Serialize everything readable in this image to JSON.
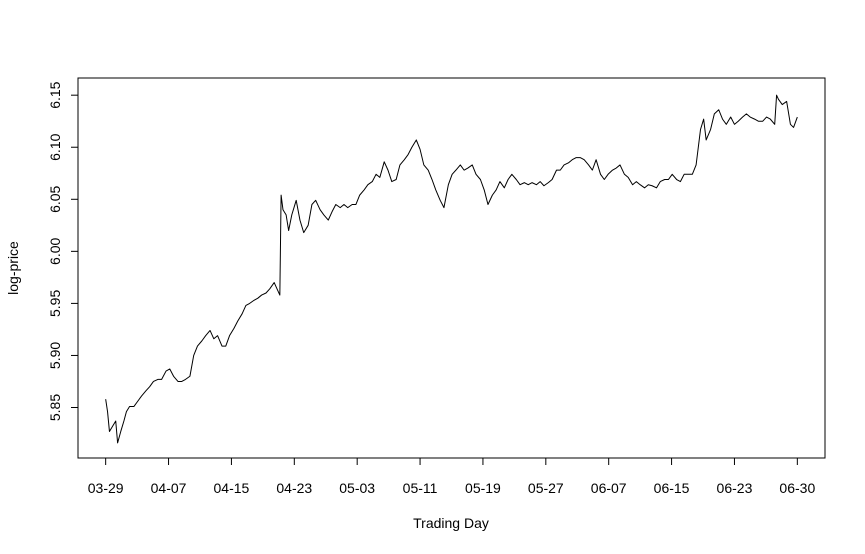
{
  "chart_data": {
    "type": "line",
    "x_label": "Trading Day",
    "y_label": "log-price",
    "color": "#000000",
    "xlim": [
      -0.44,
      11.44
    ],
    "ylim": [
      5.8015,
      6.1665
    ],
    "xticks": [
      {
        "value": 0,
        "label": "03-29"
      },
      {
        "value": 1,
        "label": "04-07"
      },
      {
        "value": 2,
        "label": "04-15"
      },
      {
        "value": 3,
        "label": "04-23"
      },
      {
        "value": 4,
        "label": "05-03"
      },
      {
        "value": 5,
        "label": "05-11"
      },
      {
        "value": 6,
        "label": "05-19"
      },
      {
        "value": 7,
        "label": "05-27"
      },
      {
        "value": 8,
        "label": "06-07"
      },
      {
        "value": 9,
        "label": "06-15"
      },
      {
        "value": 10,
        "label": "06-23"
      },
      {
        "value": 11,
        "label": "06-30"
      }
    ],
    "yticks": [
      5.85,
      {
        "value": 5.9,
        "label": "5.90"
      },
      5.95,
      {
        "value": 6.0,
        "label": "6.00"
      },
      6.05,
      {
        "value": 6.1,
        "label": "6.10"
      },
      6.15
    ],
    "x": [
      0,
      0.03,
      0.06,
      0.11,
      0.16,
      0.19,
      0.24,
      0.29,
      0.33,
      0.38,
      0.45,
      0.51,
      0.57,
      0.64,
      0.7,
      0.76,
      0.83,
      0.89,
      0.96,
      1.02,
      1.08,
      1.15,
      1.21,
      1.27,
      1.34,
      1.4,
      1.46,
      1.53,
      1.59,
      1.66,
      1.72,
      1.78,
      1.85,
      1.91,
      1.97,
      2.04,
      2.1,
      2.17,
      2.23,
      2.29,
      2.36,
      2.42,
      2.48,
      2.55,
      2.61,
      2.68,
      2.74,
      2.77,
      2.79,
      2.82,
      2.87,
      2.91,
      2.96,
      3.03,
      3.09,
      3.15,
      3.22,
      3.28,
      3.34,
      3.41,
      3.47,
      3.54,
      3.6,
      3.66,
      3.73,
      3.79,
      3.85,
      3.92,
      3.98,
      4.04,
      4.11,
      4.17,
      4.24,
      4.3,
      4.36,
      4.43,
      4.49,
      4.55,
      4.62,
      4.68,
      4.75,
      4.81,
      4.87,
      4.94,
      5.0,
      5.06,
      5.13,
      5.19,
      5.25,
      5.32,
      5.38,
      5.45,
      5.51,
      5.57,
      5.64,
      5.7,
      5.76,
      5.83,
      5.89,
      5.96,
      6.02,
      6.08,
      6.15,
      6.21,
      6.27,
      6.34,
      6.4,
      6.46,
      6.53,
      6.59,
      6.66,
      6.72,
      6.78,
      6.85,
      6.91,
      6.97,
      7.04,
      7.1,
      7.17,
      7.23,
      7.29,
      7.36,
      7.42,
      7.48,
      7.55,
      7.61,
      7.68,
      7.74,
      7.8,
      7.87,
      7.93,
      7.99,
      8.06,
      8.12,
      8.18,
      8.25,
      8.31,
      8.38,
      8.44,
      8.5,
      8.57,
      8.63,
      8.69,
      8.76,
      8.82,
      8.89,
      8.95,
      9.01,
      9.08,
      9.14,
      9.2,
      9.27,
      9.33,
      9.39,
      9.46,
      9.51,
      9.55,
      9.62,
      9.68,
      9.75,
      9.81,
      9.87,
      9.94,
      10.0,
      10.06,
      10.13,
      10.19,
      10.25,
      10.32,
      10.38,
      10.45,
      10.51,
      10.57,
      10.64,
      10.67,
      10.7,
      10.76,
      10.83,
      10.89,
      10.94,
      11.0
    ],
    "values": [
      5.858,
      5.846,
      5.827,
      5.832,
      5.837,
      5.816,
      5.827,
      5.837,
      5.846,
      5.851,
      5.851,
      5.856,
      5.861,
      5.866,
      5.87,
      5.875,
      5.877,
      5.877,
      5.885,
      5.887,
      5.88,
      5.875,
      5.875,
      5.877,
      5.88,
      5.9,
      5.909,
      5.914,
      5.919,
      5.924,
      5.916,
      5.919,
      5.909,
      5.909,
      5.919,
      5.926,
      5.933,
      5.94,
      5.948,
      5.95,
      5.953,
      5.955,
      5.958,
      5.96,
      5.964,
      5.97,
      5.962,
      5.958,
      6.054,
      6.04,
      6.035,
      6.02,
      6.035,
      6.049,
      6.03,
      6.018,
      6.025,
      6.045,
      6.049,
      6.04,
      6.035,
      6.03,
      6.038,
      6.045,
      6.042,
      6.045,
      6.042,
      6.045,
      6.045,
      6.054,
      6.059,
      6.064,
      6.067,
      6.074,
      6.071,
      6.086,
      6.078,
      6.067,
      6.069,
      6.083,
      6.088,
      6.093,
      6.1,
      6.107,
      6.098,
      6.083,
      6.078,
      6.069,
      6.059,
      6.049,
      6.042,
      6.064,
      6.074,
      6.078,
      6.083,
      6.078,
      6.08,
      6.083,
      6.074,
      6.069,
      6.059,
      6.045,
      6.054,
      6.059,
      6.067,
      6.061,
      6.069,
      6.074,
      6.069,
      6.064,
      6.066,
      6.064,
      6.066,
      6.064,
      6.067,
      6.063,
      6.066,
      6.069,
      6.078,
      6.078,
      6.083,
      6.085,
      6.088,
      6.09,
      6.09,
      6.088,
      6.083,
      6.078,
      6.088,
      6.074,
      6.069,
      6.074,
      6.078,
      6.08,
      6.083,
      6.074,
      6.071,
      6.064,
      6.067,
      6.064,
      6.061,
      6.064,
      6.063,
      6.061,
      6.067,
      6.069,
      6.069,
      6.074,
      6.069,
      6.067,
      6.074,
      6.074,
      6.074,
      6.083,
      6.117,
      6.127,
      6.107,
      6.117,
      6.132,
      6.136,
      6.127,
      6.122,
      6.129,
      6.122,
      6.125,
      6.129,
      6.132,
      6.129,
      6.127,
      6.125,
      6.125,
      6.129,
      6.127,
      6.122,
      6.15,
      6.146,
      6.141,
      6.144,
      6.122,
      6.119,
      6.129
    ]
  }
}
